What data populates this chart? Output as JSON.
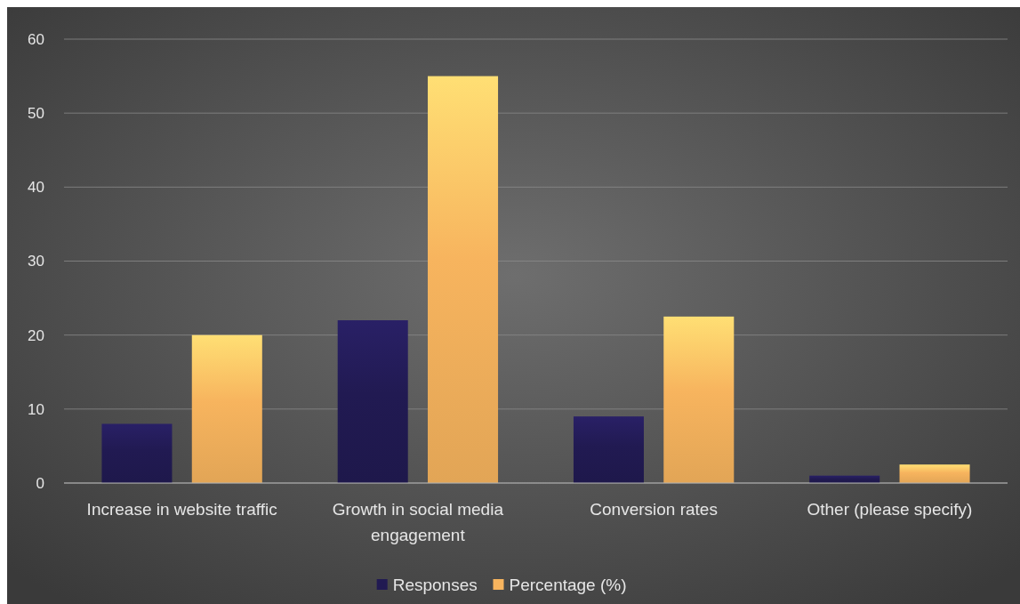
{
  "chart_data": {
    "type": "bar",
    "categories": [
      "Increase in website traffic",
      "Growth in social media engagement",
      "Conversion rates",
      "Other (please specify)"
    ],
    "series": [
      {
        "name": "Responses",
        "color": "#211a52",
        "values": [
          8,
          22,
          9,
          1
        ]
      },
      {
        "name": "Percentage (%)",
        "color": "#f7b45e",
        "values": [
          20,
          55,
          22.5,
          2.5
        ]
      }
    ],
    "ylim": [
      0,
      60
    ],
    "yticks": [
      0,
      10,
      20,
      30,
      40,
      50,
      60
    ],
    "grid": "y",
    "legend": "bottom"
  }
}
